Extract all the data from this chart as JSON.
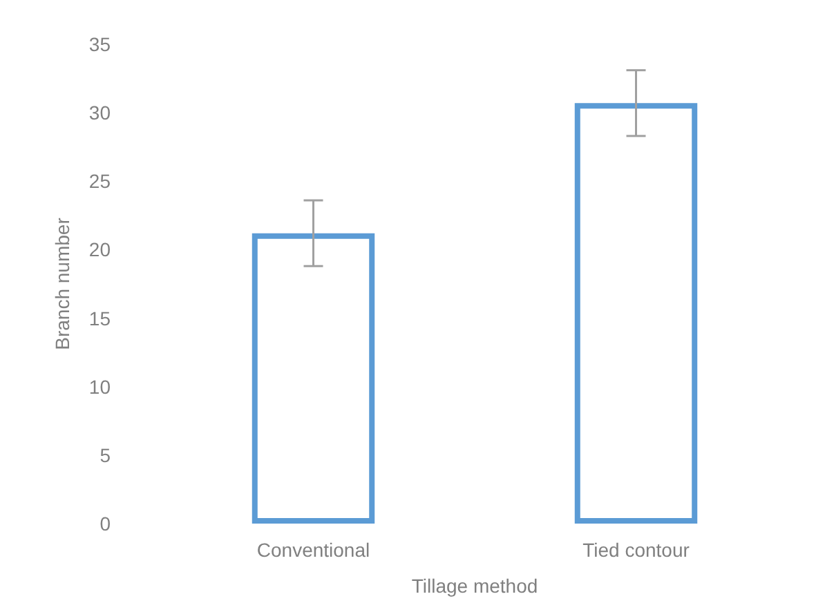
{
  "chart_data": {
    "type": "bar",
    "xlabel": "Tillage method",
    "ylabel": "Branch number",
    "categories": [
      "Conventional",
      "Tied contour"
    ],
    "series": [
      {
        "color": "#5b9bd5",
        "values": [
          21.2,
          30.7
        ],
        "errors": [
          2.4,
          2.4
        ]
      }
    ],
    "ylim": [
      0,
      35
    ],
    "yticks": [
      0,
      5,
      10,
      15,
      20,
      25,
      30,
      35
    ],
    "grid": false,
    "legend": false
  }
}
